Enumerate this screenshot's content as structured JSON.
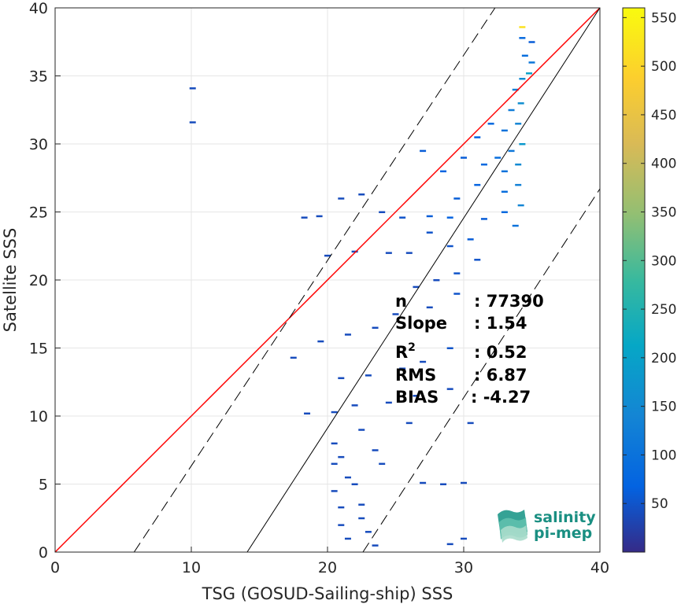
{
  "chart_data": {
    "type": "heatmap",
    "xlabel": "TSG (GOSUD-Sailing-ship) SSS",
    "ylabel": "Satellite SSS",
    "xlim": [
      0,
      40
    ],
    "ylim": [
      0,
      40
    ],
    "xticks": [
      "0",
      "10",
      "20",
      "30",
      "40"
    ],
    "yticks": [
      "0",
      "5",
      "10",
      "15",
      "20",
      "25",
      "30",
      "35",
      "40"
    ],
    "grid": true,
    "colorbar": {
      "range": [
        0,
        560
      ],
      "ticks": [
        "50",
        "100",
        "150",
        "200",
        "250",
        "300",
        "350",
        "400",
        "450",
        "500",
        "550"
      ],
      "colormap": "parula"
    },
    "lines": [
      {
        "kind": "identity",
        "color": "#ff0000",
        "x": [
          0,
          40
        ],
        "y": [
          0,
          40
        ]
      },
      {
        "kind": "regression",
        "color": "#000000",
        "x": [
          14.1,
          40
        ],
        "y": [
          0,
          40
        ]
      },
      {
        "kind": "regression-upper",
        "color": "#000000",
        "dashed": true,
        "x": [
          5.8,
          32.3
        ],
        "y": [
          0,
          40
        ]
      },
      {
        "kind": "regression-lower",
        "color": "#000000",
        "dashed": true,
        "x": [
          22.6,
          40
        ],
        "y": [
          0,
          26.7
        ]
      }
    ],
    "density_points": [
      [
        34.3,
        38.6,
        520
      ],
      [
        34.3,
        37.8,
        80
      ],
      [
        35.0,
        37.5,
        60
      ],
      [
        34.5,
        36.5,
        90
      ],
      [
        35.0,
        36.0,
        110
      ],
      [
        34.8,
        35.2,
        200
      ],
      [
        34.3,
        34.8,
        150
      ],
      [
        33.8,
        34.0,
        130
      ],
      [
        34.2,
        33.0,
        160
      ],
      [
        33.5,
        32.5,
        120
      ],
      [
        34.0,
        31.5,
        140
      ],
      [
        33.0,
        31.0,
        100
      ],
      [
        32.0,
        31.5,
        80
      ],
      [
        31.0,
        30.5,
        70
      ],
      [
        34.3,
        30.0,
        180
      ],
      [
        33.5,
        29.5,
        110
      ],
      [
        32.5,
        29.0,
        90
      ],
      [
        34.0,
        28.5,
        150
      ],
      [
        33.0,
        28.0,
        100
      ],
      [
        31.5,
        28.5,
        80
      ],
      [
        30.0,
        29.0,
        60
      ],
      [
        27.0,
        29.5,
        60
      ],
      [
        28.5,
        28.0,
        70
      ],
      [
        34.0,
        27.0,
        130
      ],
      [
        33.0,
        26.5,
        90
      ],
      [
        31.0,
        27.0,
        70
      ],
      [
        29.5,
        26.0,
        60
      ],
      [
        34.2,
        25.5,
        140
      ],
      [
        33.0,
        25.0,
        80
      ],
      [
        31.5,
        24.5,
        60
      ],
      [
        29.0,
        24.6,
        70
      ],
      [
        27.5,
        24.7,
        60
      ],
      [
        25.5,
        24.6,
        50
      ],
      [
        33.8,
        24.0,
        100
      ],
      [
        21.0,
        26.0,
        40
      ],
      [
        22.5,
        26.3,
        40
      ],
      [
        24.0,
        25.0,
        40
      ],
      [
        30.5,
        23.0,
        60
      ],
      [
        29.0,
        22.5,
        50
      ],
      [
        27.5,
        23.5,
        50
      ],
      [
        26.0,
        22.0,
        40
      ],
      [
        24.5,
        22.0,
        40
      ],
      [
        22.0,
        22.1,
        40
      ],
      [
        20.0,
        21.8,
        40
      ],
      [
        31.0,
        21.5,
        50
      ],
      [
        29.5,
        20.5,
        50
      ],
      [
        28.0,
        20.0,
        40
      ],
      [
        26.5,
        19.5,
        40
      ],
      [
        29.5,
        19.0,
        50
      ],
      [
        27.5,
        18.0,
        40
      ],
      [
        25.0,
        17.5,
        40
      ],
      [
        23.5,
        16.5,
        40
      ],
      [
        21.5,
        16.0,
        40
      ],
      [
        19.5,
        15.5,
        40
      ],
      [
        17.5,
        14.3,
        40
      ],
      [
        29.0,
        15.0,
        50
      ],
      [
        27.0,
        14.0,
        40
      ],
      [
        25.5,
        13.5,
        40
      ],
      [
        23.0,
        13.0,
        40
      ],
      [
        21.0,
        12.8,
        40
      ],
      [
        29.0,
        12.0,
        40
      ],
      [
        26.5,
        11.5,
        40
      ],
      [
        24.5,
        11.0,
        40
      ],
      [
        22.0,
        10.8,
        40
      ],
      [
        20.5,
        10.3,
        40
      ],
      [
        18.5,
        10.2,
        40
      ],
      [
        30.5,
        9.5,
        40
      ],
      [
        26.0,
        9.5,
        40
      ],
      [
        22.5,
        9.0,
        40
      ],
      [
        20.5,
        8.0,
        40
      ],
      [
        23.5,
        7.5,
        40
      ],
      [
        21.0,
        7.0,
        40
      ],
      [
        20.5,
        6.5,
        40
      ],
      [
        24.0,
        6.5,
        40
      ],
      [
        21.5,
        5.5,
        40
      ],
      [
        22.0,
        5.0,
        40
      ],
      [
        20.5,
        4.5,
        40
      ],
      [
        22.5,
        3.5,
        40
      ],
      [
        21.0,
        3.3,
        40
      ],
      [
        22.5,
        2.5,
        40
      ],
      [
        21.0,
        2.0,
        40
      ],
      [
        23.0,
        1.5,
        40
      ],
      [
        21.5,
        1.0,
        40
      ],
      [
        23.5,
        0.5,
        40
      ],
      [
        29.0,
        0.6,
        40
      ],
      [
        30.0,
        1.0,
        40
      ],
      [
        27.0,
        5.1,
        40
      ],
      [
        28.5,
        5.0,
        40
      ],
      [
        30.0,
        5.1,
        40
      ],
      [
        10.1,
        34.1,
        40
      ],
      [
        10.1,
        31.6,
        40
      ],
      [
        18.3,
        24.6,
        40
      ],
      [
        19.4,
        24.7,
        40
      ]
    ]
  },
  "stats": {
    "n_label": "n",
    "n_value": ": 77390",
    "slope_label": "Slope",
    "slope_value": ": 1.54",
    "r2_label": "R",
    "r2_sup": "2",
    "r2_value": ": 0.52",
    "rms_label": "RMS",
    "rms_value": ": 6.87",
    "bias_label": "BIAS",
    "bias_value": ": -4.27"
  },
  "logo": {
    "line1": "salinity",
    "line2": "pi-mep"
  }
}
